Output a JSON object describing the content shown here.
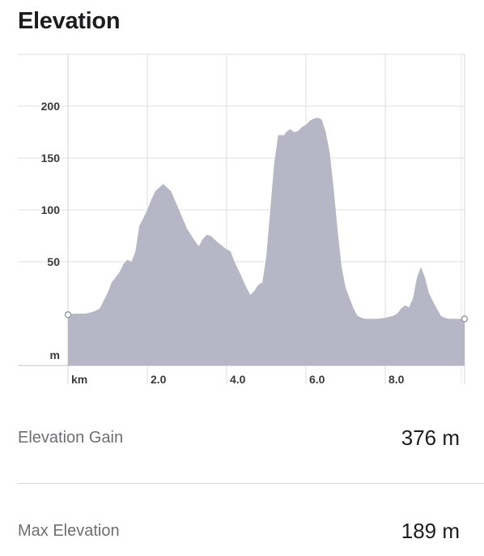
{
  "header": {
    "title": "Elevation"
  },
  "chart_data": {
    "type": "area",
    "y_unit_label": "m",
    "x_unit_label": "km",
    "ylim": [
      -50,
      250
    ],
    "xlim": [
      0,
      10.0
    ],
    "y_ticks": [
      50,
      100,
      150,
      200
    ],
    "x_ticks": [
      2.0,
      4.0,
      6.0,
      8.0
    ],
    "x_tick_labels": [
      "2.0",
      "4.0",
      "6.0",
      "8.0"
    ],
    "grid": true,
    "fill_color": "#b7b6c6",
    "x": [
      0.0,
      0.15,
      0.45,
      0.65,
      0.8,
      1.0,
      1.1,
      1.3,
      1.4,
      1.5,
      1.6,
      1.7,
      1.8,
      1.9,
      2.0,
      2.1,
      2.2,
      2.4,
      2.6,
      2.8,
      3.0,
      3.2,
      3.3,
      3.4,
      3.5,
      3.6,
      3.8,
      4.0,
      4.1,
      4.2,
      4.35,
      4.5,
      4.6,
      4.7,
      4.8,
      4.9,
      5.0,
      5.1,
      5.2,
      5.3,
      5.45,
      5.5,
      5.6,
      5.7,
      5.8,
      5.9,
      6.0,
      6.05,
      6.1,
      6.2,
      6.3,
      6.4,
      6.5,
      6.6,
      6.7,
      6.8,
      6.9,
      7.0,
      7.1,
      7.2,
      7.3,
      7.4,
      7.5,
      7.6,
      7.7,
      7.8,
      8.0,
      8.2,
      8.3,
      8.4,
      8.5,
      8.6,
      8.7,
      8.8,
      8.9,
      9.0,
      9.1,
      9.2,
      9.3,
      9.4,
      9.5,
      9.6,
      9.7,
      9.8,
      9.9,
      10.0
    ],
    "y": [
      -1,
      0,
      0,
      2,
      5,
      20,
      30,
      40,
      48,
      52,
      50,
      60,
      85,
      92,
      100,
      110,
      118,
      125,
      118,
      100,
      82,
      70,
      65,
      72,
      76,
      75,
      68,
      62,
      60,
      50,
      38,
      25,
      18,
      22,
      28,
      30,
      55,
      100,
      145,
      172,
      172,
      175,
      178,
      175,
      176,
      180,
      182,
      184,
      186,
      188,
      189,
      187,
      175,
      155,
      120,
      80,
      45,
      25,
      15,
      5,
      -2,
      -4,
      -5,
      -5,
      -5,
      -5,
      -4,
      -2,
      0,
      5,
      8,
      6,
      15,
      35,
      45,
      35,
      20,
      12,
      5,
      -2,
      -4,
      -5,
      -5,
      -5,
      -5,
      -5
    ]
  },
  "stats": [
    {
      "label": "Elevation Gain",
      "value": "376 m"
    },
    {
      "label": "Max Elevation",
      "value": "189 m"
    }
  ]
}
